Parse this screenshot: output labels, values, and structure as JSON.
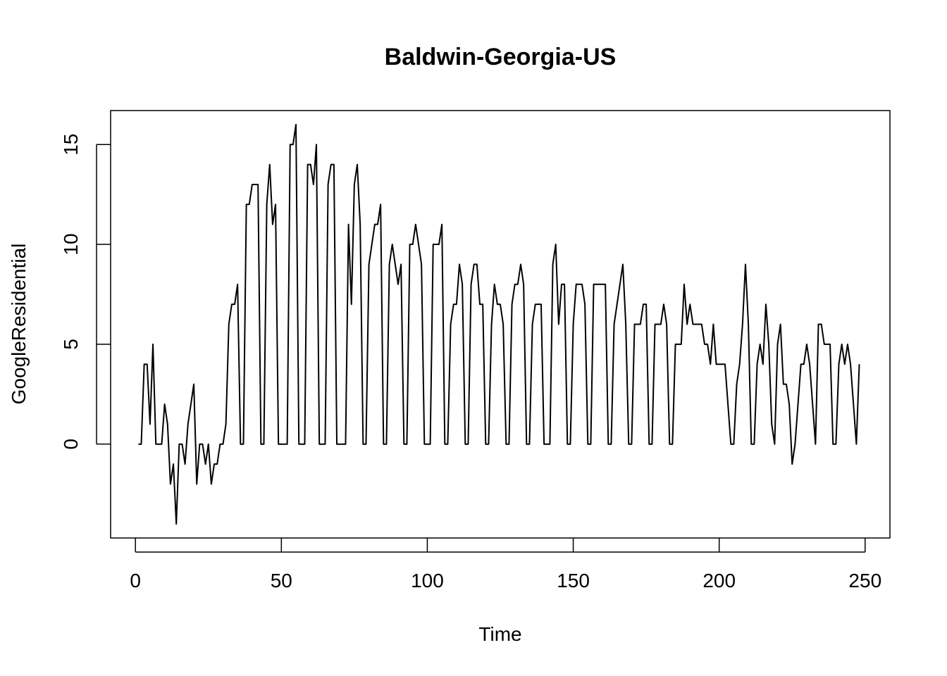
{
  "chart_data": {
    "type": "line",
    "title": "Baldwin-Georgia-US",
    "xlabel": "Time",
    "ylabel": "GoogleResidential",
    "xlim": [
      -8.5,
      258.5
    ],
    "ylim": [
      -4.7,
      16.7
    ],
    "xticks": [
      0,
      50,
      100,
      150,
      200,
      250
    ],
    "yticks": [
      0,
      5,
      10,
      15
    ],
    "x_start": 1,
    "grid": false,
    "legend": "none",
    "series": [
      {
        "color": "#000000",
        "values": [
          0,
          0,
          4,
          4,
          1,
          5,
          0,
          0,
          0,
          2,
          1,
          -2,
          -1,
          -4,
          0,
          0,
          -1,
          1,
          2,
          3,
          -2,
          0,
          0,
          -1,
          0,
          -2,
          -1,
          -1,
          0,
          0,
          1,
          6,
          7,
          7,
          8,
          0,
          0,
          12,
          12,
          13,
          13,
          13,
          0,
          0,
          12,
          14,
          11,
          12,
          0,
          0,
          0,
          0,
          15,
          15,
          16,
          0,
          0,
          0,
          14,
          14,
          13,
          15,
          0,
          0,
          0,
          13,
          14,
          14,
          0,
          0,
          0,
          0,
          11,
          7,
          13,
          14,
          11,
          0,
          0,
          9,
          10,
          11,
          11,
          12,
          0,
          0,
          9,
          10,
          9,
          8,
          9,
          0,
          0,
          10,
          10,
          11,
          10,
          9,
          0,
          0,
          0,
          10,
          10,
          10,
          11,
          0,
          0,
          6,
          7,
          7,
          9,
          8,
          0,
          0,
          8,
          9,
          9,
          7,
          7,
          0,
          0,
          6,
          8,
          7,
          7,
          6,
          0,
          0,
          7,
          8,
          8,
          9,
          8,
          0,
          0,
          6,
          7,
          7,
          7,
          0,
          0,
          0,
          9,
          10,
          6,
          8,
          8,
          0,
          0,
          6,
          8,
          8,
          8,
          7,
          0,
          0,
          8,
          8,
          8,
          8,
          8,
          0,
          0,
          6,
          7,
          8,
          9,
          6,
          0,
          0,
          6,
          6,
          6,
          7,
          7,
          0,
          0,
          6,
          6,
          6,
          7,
          6,
          0,
          0,
          5,
          5,
          5,
          8,
          6,
          7,
          6,
          6,
          6,
          6,
          5,
          5,
          4,
          6,
          4,
          4,
          4,
          4,
          2,
          0,
          0,
          3,
          4,
          6,
          9,
          6,
          0,
          0,
          4,
          5,
          4,
          7,
          5,
          1,
          0,
          5,
          6,
          3,
          3,
          2,
          -1,
          0,
          2,
          4,
          4,
          5,
          4,
          2,
          0,
          6,
          6,
          5,
          5,
          5,
          0,
          0,
          4,
          5,
          4,
          5,
          4,
          2,
          0,
          4
        ]
      }
    ]
  }
}
